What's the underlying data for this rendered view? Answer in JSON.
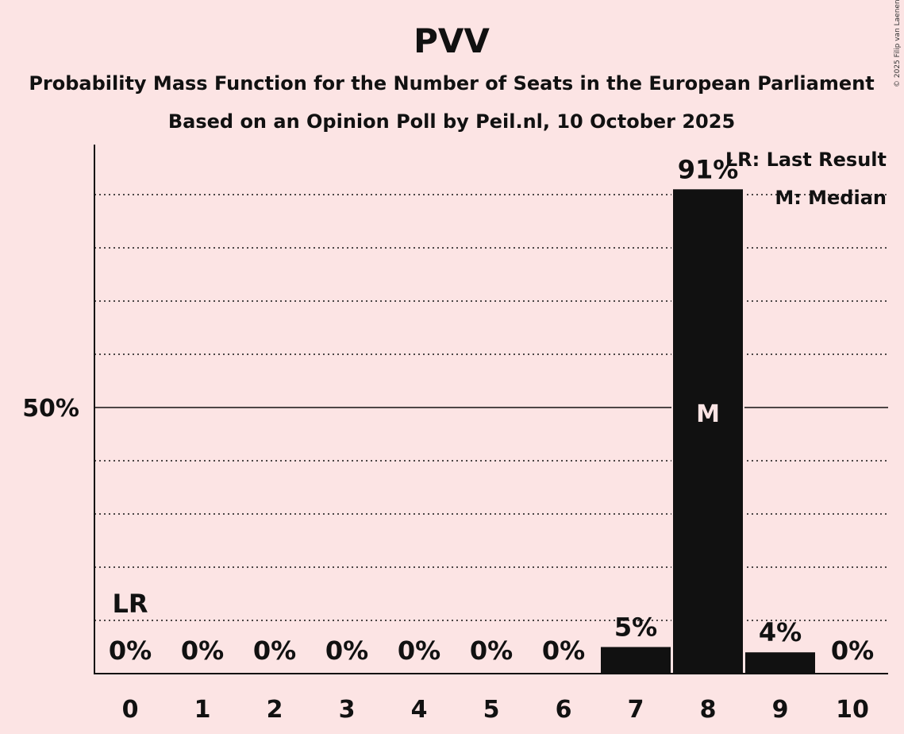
{
  "colors": {
    "background": "#fce4e4",
    "bar": "#111111",
    "text": "#111111"
  },
  "chart_data": {
    "type": "bar",
    "title": "PVV",
    "subtitle": "Probability Mass Function for the Number of Seats in the European Parliament",
    "subtitle2": "Based on an Opinion Poll by Peil.nl, 10 October 2025",
    "categories": [
      "0",
      "1",
      "2",
      "3",
      "4",
      "5",
      "6",
      "7",
      "8",
      "9",
      "10"
    ],
    "values": [
      0,
      0,
      0,
      0,
      0,
      0,
      0,
      5,
      91,
      4,
      0
    ],
    "value_labels": [
      "0%",
      "0%",
      "0%",
      "0%",
      "0%",
      "0%",
      "0%",
      "5%",
      "91%",
      "4%",
      "0%"
    ],
    "ylim": [
      0,
      95
    ],
    "y_ticks": [
      {
        "value": 50,
        "label": "50%"
      }
    ],
    "grid": "dotted every 10%",
    "last_result": {
      "seats": 0,
      "label": "LR"
    },
    "median": {
      "seats": 8,
      "label": "M"
    },
    "legend": {
      "position": "top-right",
      "entries": [
        "LR: Last Result",
        "M: Median"
      ]
    },
    "copyright": "© 2025 Filip van Laenen"
  }
}
